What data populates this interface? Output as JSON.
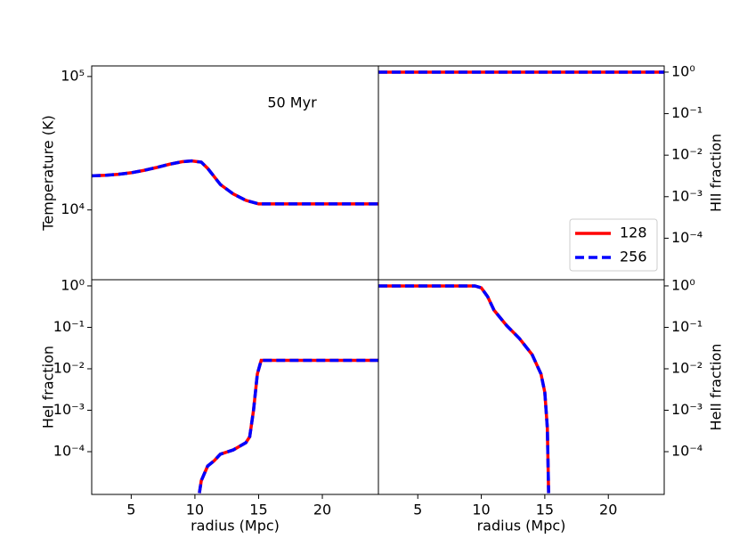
{
  "chart_data": [
    {
      "type": "line",
      "ylabel": "Temperature (K)",
      "y_side": "left",
      "log_y": true,
      "annotation": "50 Myr",
      "xlim": [
        1.9,
        24.4
      ],
      "ylim": [
        3000,
        120000
      ],
      "yticks": [
        {
          "value": 10000,
          "label": "10⁴"
        },
        {
          "value": 100000,
          "label": "10⁵"
        }
      ],
      "x": [
        1.9,
        3,
        4,
        5,
        6,
        7,
        8,
        9,
        9.75,
        10.5,
        11,
        12,
        13,
        14,
        15,
        16,
        24.4
      ],
      "series": [
        {
          "name": "128",
          "color": "#ff0000",
          "linestyle": "solid",
          "values": [
            18000,
            18200,
            18500,
            19000,
            19800,
            20800,
            22000,
            23000,
            23300,
            22800,
            20500,
            15500,
            13200,
            11800,
            11100,
            11100,
            11100
          ]
        },
        {
          "name": "256",
          "color": "#0000ff",
          "linestyle": "dashed",
          "values": [
            18000,
            18200,
            18500,
            19000,
            19800,
            20800,
            22000,
            23000,
            23300,
            22800,
            20500,
            15500,
            13200,
            11800,
            11100,
            11100,
            11100
          ]
        }
      ]
    },
    {
      "type": "line",
      "ylabel": "HII fraction",
      "y_side": "right",
      "log_y": true,
      "legend": "lower right",
      "xlim": [
        1.9,
        24.4
      ],
      "ylim": [
        1e-05,
        1.41
      ],
      "yticks": [
        {
          "value": 0.0001,
          "label": "10⁻⁴"
        },
        {
          "value": 0.001,
          "label": "10⁻³"
        },
        {
          "value": 0.01,
          "label": "10⁻²"
        },
        {
          "value": 0.1,
          "label": "10⁻¹"
        },
        {
          "value": 1,
          "label": "10⁰"
        }
      ],
      "x": [
        1.9,
        24.4
      ],
      "series": [
        {
          "name": "128",
          "color": "#ff0000",
          "linestyle": "solid",
          "values": [
            1,
            1
          ]
        },
        {
          "name": "256",
          "color": "#0000ff",
          "linestyle": "dashed",
          "values": [
            1,
            1
          ]
        }
      ]
    },
    {
      "type": "line",
      "ylabel": "HeI fraction",
      "xlabel": "radius (Mpc)",
      "y_side": "left",
      "log_y": true,
      "xlim": [
        1.9,
        24.4
      ],
      "ylim": [
        9.3e-06,
        1.41
      ],
      "xticks": [
        5,
        10,
        15,
        20
      ],
      "yticks": [
        {
          "value": 0.0001,
          "label": "10⁻⁴"
        },
        {
          "value": 0.001,
          "label": "10⁻³"
        },
        {
          "value": 0.01,
          "label": "10⁻²"
        },
        {
          "value": 0.1,
          "label": "10⁻¹"
        },
        {
          "value": 1,
          "label": "10⁰"
        }
      ],
      "x": [
        10.35,
        10.5,
        11,
        11.5,
        12,
        13,
        14,
        14.3,
        14.6,
        14.9,
        15.2,
        24.4
      ],
      "series": [
        {
          "name": "128",
          "color": "#ff0000",
          "linestyle": "solid",
          "values": [
            1e-05,
            2e-05,
            4.5e-05,
            6e-05,
            8.7e-05,
            0.00011,
            0.000165,
            0.00023,
            0.001,
            0.0075,
            0.016,
            0.016
          ]
        },
        {
          "name": "256",
          "color": "#0000ff",
          "linestyle": "dashed",
          "values": [
            1e-05,
            2e-05,
            4.5e-05,
            6e-05,
            8.7e-05,
            0.00011,
            0.000165,
            0.00023,
            0.001,
            0.0075,
            0.016,
            0.016
          ]
        }
      ]
    },
    {
      "type": "line",
      "ylabel": "HeII fraction",
      "xlabel": "radius (Mpc)",
      "y_side": "right",
      "log_y": true,
      "xlim": [
        1.9,
        24.4
      ],
      "ylim": [
        9.3e-06,
        1.41
      ],
      "xticks": [
        5,
        10,
        15,
        20
      ],
      "yticks": [
        {
          "value": 0.0001,
          "label": "10⁻⁴"
        },
        {
          "value": 0.001,
          "label": "10⁻³"
        },
        {
          "value": 0.01,
          "label": "10⁻²"
        },
        {
          "value": 0.1,
          "label": "10⁻¹"
        },
        {
          "value": 1,
          "label": "10⁰"
        }
      ],
      "x": [
        1.9,
        5,
        9.5,
        10,
        10.5,
        11,
        12,
        13,
        14,
        14.7,
        15,
        15.2,
        15.3
      ],
      "series": [
        {
          "name": "128",
          "color": "#ff0000",
          "linestyle": "solid",
          "values": [
            1,
            1,
            1,
            0.9,
            0.55,
            0.26,
            0.11,
            0.054,
            0.022,
            0.0075,
            0.0027,
            0.00037,
            1e-05
          ]
        },
        {
          "name": "256",
          "color": "#0000ff",
          "linestyle": "dashed",
          "values": [
            1,
            1,
            1,
            0.9,
            0.55,
            0.26,
            0.11,
            0.054,
            0.022,
            0.0075,
            0.0027,
            0.00037,
            1e-05
          ]
        }
      ]
    }
  ]
}
